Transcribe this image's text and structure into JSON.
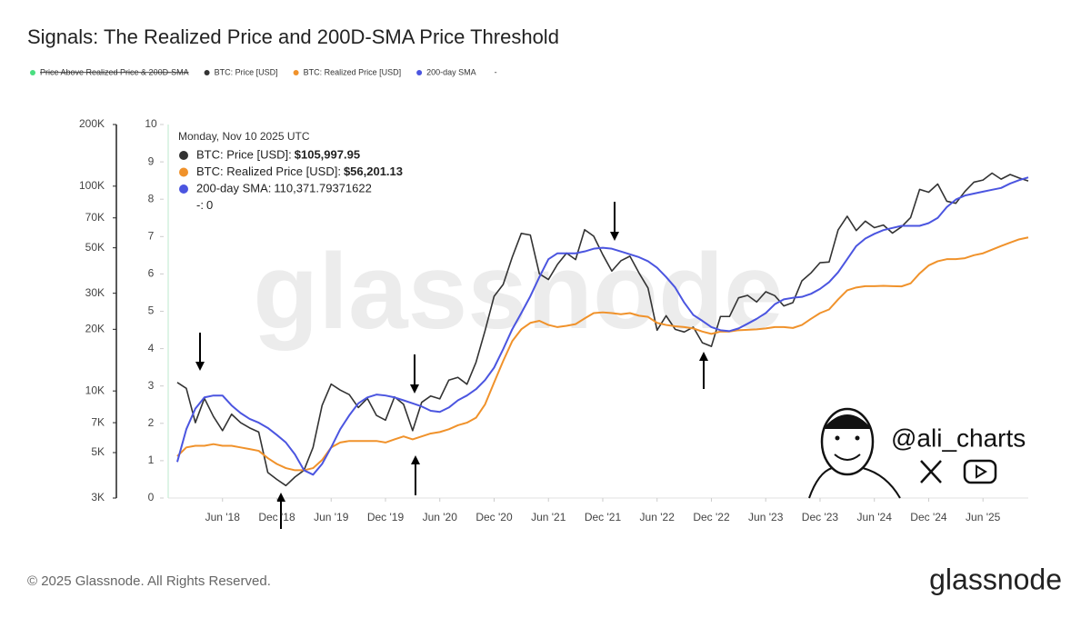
{
  "chart_data": {
    "type": "line",
    "title": "Signals: The Realized Price and 200D-SMA Price Threshold",
    "log_scale": true,
    "grid": false,
    "x": [
      "2018-01",
      "2018-02",
      "2018-03",
      "2018-04",
      "2018-05",
      "2018-06",
      "2018-07",
      "2018-08",
      "2018-09",
      "2018-10",
      "2018-11",
      "2018-12",
      "2019-01",
      "2019-02",
      "2019-03",
      "2019-04",
      "2019-05",
      "2019-06",
      "2019-07",
      "2019-08",
      "2019-09",
      "2019-10",
      "2019-11",
      "2019-12",
      "2020-01",
      "2020-02",
      "2020-03",
      "2020-04",
      "2020-05",
      "2020-06",
      "2020-07",
      "2020-08",
      "2020-09",
      "2020-10",
      "2020-11",
      "2020-12",
      "2021-01",
      "2021-02",
      "2021-03",
      "2021-04",
      "2021-05",
      "2021-06",
      "2021-07",
      "2021-08",
      "2021-09",
      "2021-10",
      "2021-11",
      "2021-12",
      "2022-01",
      "2022-02",
      "2022-03",
      "2022-04",
      "2022-05",
      "2022-06",
      "2022-07",
      "2022-08",
      "2022-09",
      "2022-10",
      "2022-11",
      "2022-12",
      "2023-01",
      "2023-02",
      "2023-03",
      "2023-04",
      "2023-05",
      "2023-06",
      "2023-07",
      "2023-08",
      "2023-09",
      "2023-10",
      "2023-11",
      "2023-12",
      "2024-01",
      "2024-02",
      "2024-03",
      "2024-04",
      "2024-05",
      "2024-06",
      "2024-07",
      "2024-08",
      "2024-09",
      "2024-10",
      "2024-11",
      "2024-12",
      "2025-01",
      "2025-02",
      "2025-03",
      "2025-04",
      "2025-05",
      "2025-06",
      "2025-07",
      "2025-08",
      "2025-09",
      "2025-10",
      "2025-11"
    ],
    "xlim": [
      "2017-12",
      "2025-11"
    ],
    "xticks": [
      {
        "value": "2018-06",
        "label": "Jun '18"
      },
      {
        "value": "2018-12",
        "label": "Dec '18"
      },
      {
        "value": "2019-06",
        "label": "Jun '19"
      },
      {
        "value": "2019-12",
        "label": "Dec '19"
      },
      {
        "value": "2020-06",
        "label": "Jun '20"
      },
      {
        "value": "2020-12",
        "label": "Dec '20"
      },
      {
        "value": "2021-06",
        "label": "Jun '21"
      },
      {
        "value": "2021-12",
        "label": "Dec '21"
      },
      {
        "value": "2022-06",
        "label": "Jun '22"
      },
      {
        "value": "2022-12",
        "label": "Dec '22"
      },
      {
        "value": "2023-06",
        "label": "Jun '23"
      },
      {
        "value": "2023-12",
        "label": "Dec '23"
      },
      {
        "value": "2024-06",
        "label": "Jun '24"
      },
      {
        "value": "2024-12",
        "label": "Dec '24"
      },
      {
        "value": "2025-06",
        "label": "Jun '25"
      }
    ],
    "ylim": [
      3000,
      200000
    ],
    "yticks": [
      {
        "value": 3000,
        "label": "3K"
      },
      {
        "value": 5000,
        "label": "5K"
      },
      {
        "value": 7000,
        "label": "7K"
      },
      {
        "value": 10000,
        "label": "10K"
      },
      {
        "value": 20000,
        "label": "20K"
      },
      {
        "value": 30000,
        "label": "30K"
      },
      {
        "value": 50000,
        "label": "50K"
      },
      {
        "value": 70000,
        "label": "70K"
      },
      {
        "value": 100000,
        "label": "100K"
      },
      {
        "value": 200000,
        "label": "200K"
      }
    ],
    "y2lim": [
      0,
      10
    ],
    "y2ticks": [
      0,
      1,
      2,
      3,
      4,
      5,
      6,
      7,
      8,
      9,
      10
    ],
    "hidden_series": [
      {
        "name": "Price Above Realized Price & 200D-SMA",
        "color": "#4ade80"
      }
    ],
    "extra_series": [
      {
        "name": "-",
        "color": "#bbbbbb"
      }
    ],
    "series": [
      {
        "name": "BTC: Price [USD]",
        "color": "#333333",
        "values": [
          11000,
          10300,
          7000,
          9200,
          7500,
          6400,
          7700,
          7000,
          6600,
          6300,
          4000,
          3700,
          3450,
          3800,
          4100,
          5300,
          8500,
          10800,
          10100,
          9600,
          8300,
          9200,
          7600,
          7200,
          9350,
          8600,
          6400,
          8800,
          9450,
          9150,
          11300,
          11650,
          10780,
          13800,
          19700,
          29000,
          33100,
          45000,
          58800,
          57700,
          37300,
          35000,
          41500,
          47100,
          43800,
          61300,
          57000,
          46300,
          38500,
          43200,
          45500,
          37700,
          31800,
          19800,
          23300,
          20000,
          19400,
          20500,
          17200,
          16500,
          23100,
          23100,
          28500,
          29300,
          27200,
          30500,
          29200,
          26000,
          27000,
          34500,
          37700,
          42300,
          42600,
          61200,
          71300,
          60700,
          67500,
          62700,
          64600,
          59000,
          63300,
          70200,
          96400,
          93400,
          102400,
          84400,
          82500,
          94200,
          104600,
          107100,
          115800,
          108200,
          114000,
          109600,
          105997.95
        ]
      },
      {
        "name": "BTC: Realized Price [USD]",
        "color": "#f0922b",
        "values": [
          4800,
          5300,
          5400,
          5400,
          5500,
          5400,
          5400,
          5300,
          5200,
          5100,
          4700,
          4400,
          4200,
          4100,
          4100,
          4200,
          4600,
          5300,
          5600,
          5700,
          5700,
          5700,
          5700,
          5600,
          5800,
          6000,
          5800,
          6000,
          6200,
          6300,
          6500,
          6800,
          7000,
          7400,
          8600,
          11000,
          14000,
          17500,
          20000,
          21500,
          22000,
          21000,
          20500,
          20800,
          21200,
          22600,
          24000,
          24200,
          24000,
          23700,
          24000,
          23300,
          23000,
          21500,
          21000,
          20700,
          20500,
          20200,
          19500,
          19000,
          19500,
          19500,
          19800,
          19900,
          20000,
          20200,
          20500,
          20500,
          20300,
          21000,
          22500,
          24000,
          25000,
          28000,
          31000,
          32000,
          32500,
          32500,
          32600,
          32500,
          32400,
          33500,
          37500,
          41000,
          43000,
          44000,
          44000,
          44500,
          46000,
          47000,
          49000,
          51000,
          53000,
          55000,
          56201.13
        ]
      },
      {
        "name": "200-day SMA",
        "color": "#4b55e0",
        "values": [
          4500,
          6500,
          8200,
          9300,
          9500,
          9500,
          8500,
          7800,
          7300,
          7000,
          6600,
          6100,
          5600,
          4900,
          4100,
          3900,
          4400,
          5300,
          6500,
          7600,
          8700,
          9300,
          9600,
          9500,
          9300,
          9000,
          8700,
          8400,
          8000,
          7900,
          8300,
          9000,
          9500,
          10200,
          11300,
          13000,
          16000,
          20000,
          24000,
          29000,
          36000,
          44000,
          47000,
          47000,
          47000,
          48000,
          49500,
          50000,
          49500,
          48000,
          46500,
          45000,
          43000,
          40000,
          36000,
          32000,
          27000,
          23500,
          22000,
          20500,
          19800,
          19600,
          20200,
          21300,
          22500,
          24000,
          26500,
          28000,
          28500,
          28800,
          29800,
          31500,
          34000,
          38000,
          44000,
          51000,
          55500,
          58500,
          61000,
          62500,
          64000,
          64000,
          64000,
          66000,
          70000,
          79000,
          86000,
          90000,
          92000,
          94000,
          96000,
          98000,
          103000,
          107000,
          110371.79371622
        ]
      }
    ],
    "tooltip": {
      "title": "Monday, Nov 10 2025 UTC",
      "rows": [
        {
          "label": "BTC: Price [USD]: ",
          "value": "$105,997.95"
        },
        {
          "label": "BTC: Realized Price [USD]: ",
          "value": "$56,201.13"
        },
        {
          "label": "200-day SMA: ",
          "value": "110,371.79371622"
        },
        {
          "label": "-: ",
          "value": "0"
        }
      ]
    },
    "watermark": "glassnode",
    "author": "@ali_charts",
    "copyright": "© 2025 Glassnode. All Rights Reserved.",
    "brand": "glassnode"
  }
}
